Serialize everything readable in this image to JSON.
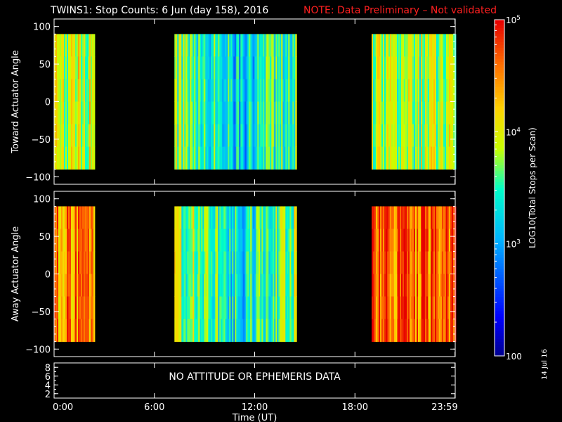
{
  "title": "TWINS1: Stop Counts:  6 Jun (day 158), 2016",
  "note": "NOTE: Data Preliminary – Not validated",
  "date_stamp": "14 Jul 16",
  "colorbar": {
    "label": "LOG10(Total Stops per Scan)",
    "ticks": [
      {
        "label": "10",
        "sup": "5",
        "value": 100000
      },
      {
        "label": "10",
        "sup": "4",
        "value": 10000
      },
      {
        "label": "10",
        "sup": "3",
        "value": 1000
      },
      {
        "label": "100",
        "sup": "",
        "value": 100
      }
    ],
    "range": [
      100,
      100000
    ],
    "scale": "log"
  },
  "chart_data": [
    {
      "type": "heatmap",
      "ylabel": "Toward Actuator Angle",
      "ylim": [
        -110,
        110
      ],
      "yticks": [
        "100",
        "50",
        "0",
        "−50",
        "−100"
      ],
      "ytick_values": [
        100,
        50,
        0,
        -50,
        -100
      ],
      "data_y_range": [
        -90,
        90
      ],
      "scale": "log",
      "data_intervals": [
        {
          "start_hour": 0.0,
          "end_hour": 2.4,
          "typical_log10_counts": 3.9
        },
        {
          "start_hour": 7.2,
          "end_hour": 14.5,
          "typical_log10_counts": 3.4
        },
        {
          "start_hour": 19.0,
          "end_hour": 24.0,
          "typical_log10_counts": 3.8
        }
      ]
    },
    {
      "type": "heatmap",
      "ylabel": "Away Actuator Angle",
      "ylim": [
        -110,
        110
      ],
      "yticks": [
        "100",
        "50",
        "0",
        "−50",
        "−100"
      ],
      "ytick_values": [
        100,
        50,
        0,
        -50,
        -100
      ],
      "data_y_range": [
        -90,
        90
      ],
      "scale": "log",
      "data_intervals": [
        {
          "start_hour": 0.0,
          "end_hour": 2.4,
          "typical_log10_counts": 4.5
        },
        {
          "start_hour": 7.2,
          "end_hour": 14.5,
          "typical_log10_counts": 3.5
        },
        {
          "start_hour": 19.0,
          "end_hour": 24.0,
          "typical_log10_counts": 4.6
        }
      ]
    },
    {
      "type": "line",
      "ylabel": "",
      "yticks": [
        "8",
        "6",
        "4",
        "2"
      ],
      "ytick_values": [
        8,
        6,
        4,
        2
      ],
      "ylim": [
        1,
        9
      ],
      "message": "NO ATTITUDE OR EPHEMERIS DATA"
    }
  ],
  "xaxis": {
    "label": "Time (UT)",
    "ticks": [
      {
        "label": "0:00",
        "hour": 0
      },
      {
        "label": "6:00",
        "hour": 6
      },
      {
        "label": "12:00",
        "hour": 12
      },
      {
        "label": "18:00",
        "hour": 18
      },
      {
        "label": "23:59",
        "hour": 23.983
      }
    ],
    "xlim_hours": [
      0,
      24
    ]
  }
}
